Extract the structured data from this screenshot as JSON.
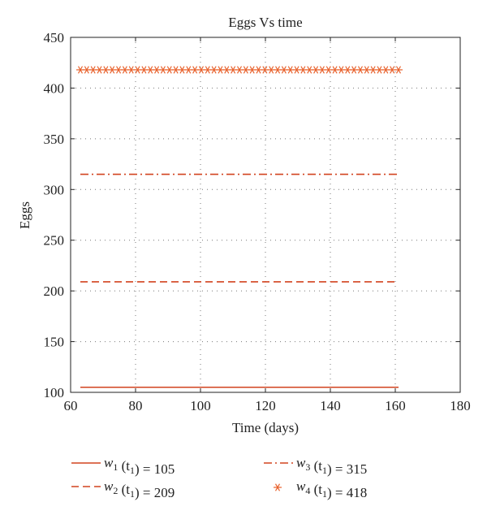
{
  "chart_data": {
    "type": "line",
    "title": "Eggs Vs time",
    "xlabel": "Time (days)",
    "ylabel": "Eggs",
    "xlim": [
      60,
      180
    ],
    "ylim": [
      100,
      450
    ],
    "xticks": [
      60,
      80,
      100,
      120,
      140,
      160,
      180
    ],
    "yticks": [
      100,
      150,
      200,
      250,
      300,
      350,
      400,
      450
    ],
    "grid": true,
    "legend_position": "bottom",
    "series": [
      {
        "var": "w",
        "sub": "1",
        "rest": "(t",
        "restsub": "1",
        "tail": ") = 105",
        "style": "solid",
        "color": "#d2431f",
        "x": [
          63,
          161
        ],
        "y": [
          105,
          105
        ]
      },
      {
        "var": "w",
        "sub": "2",
        "rest": "(t",
        "restsub": "1",
        "tail": ") = 209",
        "style": "dashed",
        "color": "#d2431f",
        "x": [
          63,
          161
        ],
        "y": [
          209,
          209
        ]
      },
      {
        "var": "w",
        "sub": "3",
        "rest": "(t",
        "restsub": "1",
        "tail": ") = 315",
        "style": "dashdot",
        "color": "#d2431f",
        "x": [
          63,
          161
        ],
        "y": [
          315,
          315
        ]
      },
      {
        "var": "w",
        "sub": "4",
        "rest": "(t",
        "restsub": "1",
        "tail": ") = 418",
        "style": "star",
        "color": "#e8612c",
        "x": [
          63,
          161
        ],
        "y": [
          418,
          418
        ]
      }
    ]
  }
}
